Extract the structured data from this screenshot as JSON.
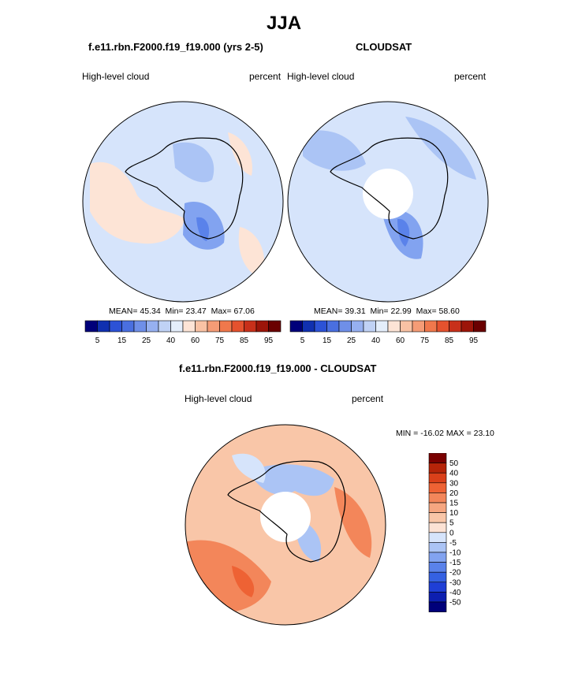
{
  "page": {
    "title": "JJA"
  },
  "panels": [
    {
      "title": "f.e11.rbn.F2000.f19_f19.000 (yrs 2-5)",
      "left_label": "High-level cloud",
      "right_label": "percent",
      "stats": {
        "mean_label": "MEAN=",
        "mean": "45.34",
        "min_label": "Min=",
        "min": "23.47",
        "max_label": "Max=",
        "max": "67.06"
      }
    },
    {
      "title": "CLOUDSAT",
      "left_label": "High-level cloud",
      "right_label": "percent",
      "stats": {
        "mean_label": "MEAN=",
        "mean": "39.31",
        "min_label": "Min=",
        "min": "22.99",
        "max_label": "Max=",
        "max": "58.60"
      }
    },
    {
      "title": "f.e11.rbn.F2000.f19_f19.000 - CLOUDSAT",
      "left_label": "High-level cloud",
      "right_label": "percent",
      "minmax": "MIN = -16.02 MAX =  23.10"
    }
  ],
  "colors": {
    "abs_scale": [
      "#00007a",
      "#1030b0",
      "#2c52d6",
      "#4a6fe0",
      "#6f8fe8",
      "#96b0f0",
      "#c0d2f5",
      "#e4eefb",
      "#fde4d6",
      "#f9c2a4",
      "#f59c76",
      "#f0784c",
      "#e5522e",
      "#c8301a",
      "#9c1509",
      "#6a0000"
    ],
    "diff_scale": [
      "#00007a",
      "#0d1fb0",
      "#1f3fd6",
      "#3561e2",
      "#5a82ea",
      "#82a3f0",
      "#abc4f5",
      "#d6e4fb",
      "#fce2d4",
      "#f9c6a8",
      "#f6a680",
      "#f3865a",
      "#ee6234",
      "#da401a",
      "#b52409",
      "#7a0000"
    ]
  },
  "chart_data": [
    {
      "type": "heatmap",
      "projection": "south polar stereographic",
      "title": "f.e11.rbn.F2000.f19_f19.000 (yrs 2-5)",
      "variable": "High-level cloud",
      "units": "percent",
      "colorbar_ticks": [
        "5",
        "15",
        "25",
        "40",
        "60",
        "75",
        "85",
        "95"
      ],
      "mean": 45.34,
      "min": 23.47,
      "max": 67.06
    },
    {
      "type": "heatmap",
      "projection": "south polar stereographic",
      "title": "CLOUDSAT",
      "variable": "High-level cloud",
      "units": "percent",
      "colorbar_ticks": [
        "5",
        "15",
        "25",
        "40",
        "60",
        "75",
        "85",
        "95"
      ],
      "mean": 39.31,
      "min": 22.99,
      "max": 58.6,
      "missing_data": "pole"
    },
    {
      "type": "heatmap",
      "projection": "south polar stereographic",
      "title": "f.e11.rbn.F2000.f19_f19.000 - CLOUDSAT",
      "variable": "High-level cloud",
      "units": "percent",
      "colorbar_ticks": [
        "50",
        "40",
        "30",
        "20",
        "15",
        "10",
        "5",
        "0",
        "-5",
        "-10",
        "-15",
        "-20",
        "-30",
        "-40",
        "-50"
      ],
      "min": -16.02,
      "max": 23.1,
      "missing_data": "pole"
    }
  ]
}
